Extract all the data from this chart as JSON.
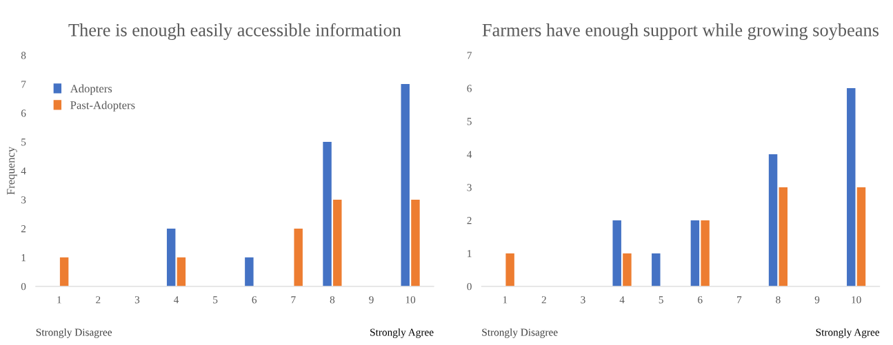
{
  "chart_data": [
    {
      "type": "bar",
      "title": "There is enough easily accessible information",
      "ylabel": "Frequency",
      "categories": [
        "1",
        "2",
        "3",
        "4",
        "5",
        "6",
        "7",
        "8",
        "9",
        "10"
      ],
      "series": [
        {
          "name": "Adopters",
          "color": "#4472c4",
          "values": [
            0,
            0,
            0,
            2,
            0,
            1,
            0,
            5,
            0,
            7
          ]
        },
        {
          "name": "Past-Adopters",
          "color": "#ed7d31",
          "values": [
            1,
            0,
            0,
            1,
            0,
            0,
            2,
            3,
            0,
            3
          ]
        }
      ],
      "ylim": [
        0,
        8
      ],
      "yticks": [
        0,
        1,
        2,
        3,
        4,
        5,
        6,
        7,
        8
      ],
      "grid": false,
      "legend": "top left",
      "annotations": [
        "Strongly Disagree",
        "Strongly Agree"
      ]
    },
    {
      "type": "bar",
      "title": "Farmers have enough support while growing soybeans",
      "categories": [
        "1",
        "2",
        "3",
        "4",
        "5",
        "6",
        "7",
        "8",
        "9",
        "10"
      ],
      "series": [
        {
          "color": "#4472c4",
          "values": [
            0,
            0,
            0,
            2,
            1,
            2,
            0,
            4,
            0,
            6
          ]
        },
        {
          "color": "#ed7d31",
          "values": [
            1,
            0,
            0,
            1,
            0,
            2,
            0,
            3,
            0,
            3
          ]
        }
      ],
      "ylim": [
        0,
        7
      ],
      "yticks": [
        0,
        1,
        2,
        3,
        4,
        5,
        6,
        7
      ],
      "grid": false,
      "legend": false,
      "annotations": [
        "Strongly Disagree",
        "Strongly Agree"
      ]
    }
  ]
}
